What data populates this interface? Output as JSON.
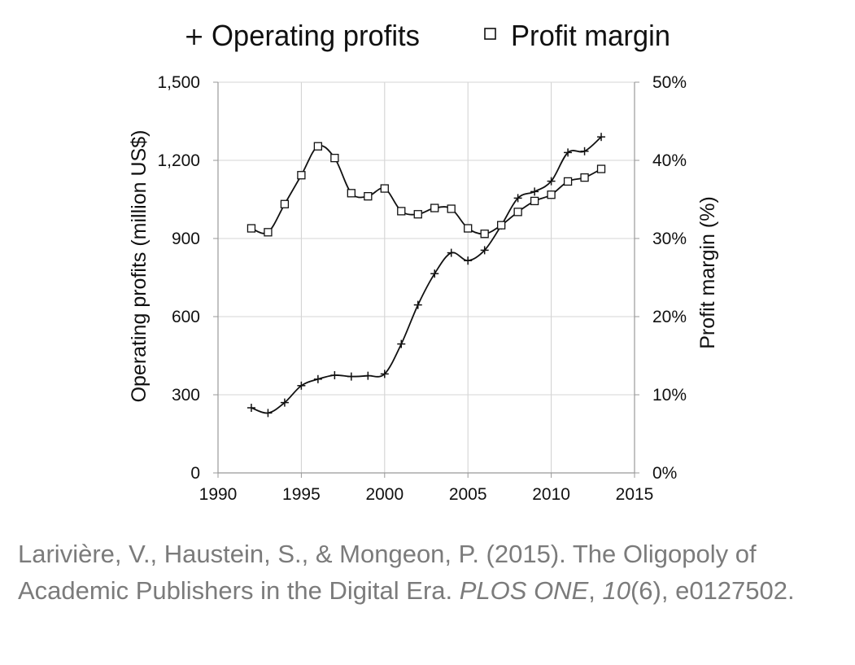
{
  "chart_data": {
    "type": "line",
    "xlim": [
      1990,
      2015
    ],
    "x_ticks": [
      "1990",
      "1995",
      "2000",
      "2005",
      "2010",
      "2015"
    ],
    "ylabel_left": "Operating profits (million US$)",
    "ylim_left": [
      0,
      1500
    ],
    "y_ticks_left": [
      "0",
      "300",
      "600",
      "900",
      "1,200",
      "1,500"
    ],
    "ylabel_right": "Profit margin (%)",
    "ylim_right": [
      0,
      50
    ],
    "y_ticks_right": [
      "0%",
      "10%",
      "20%",
      "30%",
      "40%",
      "50%"
    ],
    "grid": true,
    "legend_position": "top",
    "x": [
      1992,
      1993,
      1994,
      1995,
      1996,
      1997,
      1998,
      1999,
      2000,
      2001,
      2002,
      2003,
      2004,
      2005,
      2006,
      2007,
      2008,
      2009,
      2010,
      2011,
      2012,
      2013
    ],
    "series": [
      {
        "name": "Operating profits",
        "marker": "plus",
        "axis": "left",
        "color": "#111111",
        "values": [
          250,
          230,
          270,
          335,
          360,
          375,
          370,
          373,
          380,
          495,
          645,
          765,
          845,
          815,
          855,
          950,
          1055,
          1080,
          1120,
          1230,
          1235,
          1290
        ]
      },
      {
        "name": "Profit margin",
        "marker": "square",
        "axis": "right",
        "color": "#111111",
        "values": [
          31.3,
          30.8,
          34.4,
          38.1,
          41.8,
          40.3,
          35.8,
          35.4,
          36.4,
          33.5,
          33.1,
          33.9,
          33.8,
          31.3,
          30.6,
          31.7,
          33.4,
          34.8,
          35.6,
          37.3,
          37.8,
          38.9
        ]
      }
    ]
  },
  "citation": {
    "authors": "Larivière, V., Haustein, S., & Mongeon, P. (2015). The Oligopoly of Academic Publishers in the Digital Era. ",
    "journal": "PLOS ONE",
    "sep": ", ",
    "volume": "10",
    "issue": "(6), e0127502."
  }
}
